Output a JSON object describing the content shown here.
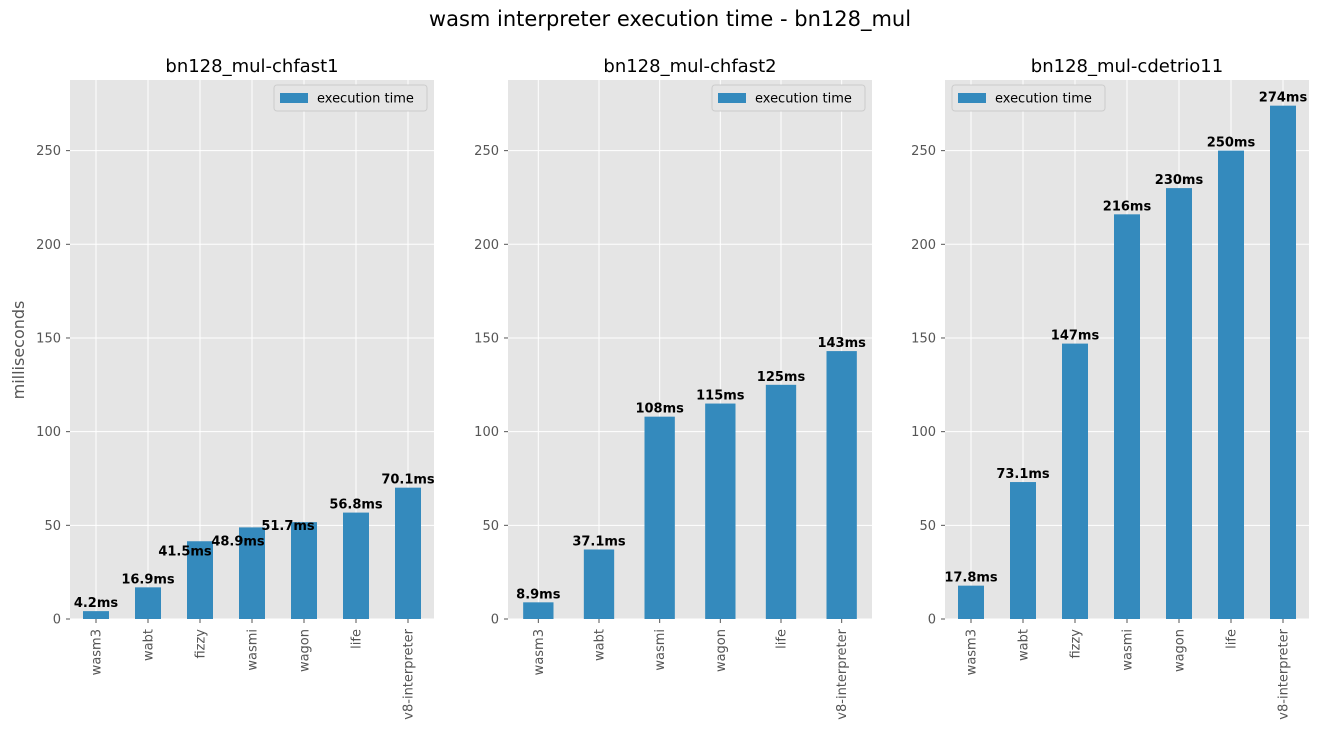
{
  "figure": {
    "title": "wasm interpreter execution time - bn128_mul",
    "ylabel": "milliseconds"
  },
  "chart_data": [
    {
      "type": "bar",
      "title": "bn128_mul-chfast1",
      "categories": [
        "wasm3",
        "wabt",
        "fizzy",
        "wasmi",
        "wagon",
        "life",
        "v8-interpreter"
      ],
      "series": [
        {
          "name": "execution time",
          "values": [
            4.2,
            16.9,
            41.5,
            48.9,
            51.7,
            56.8,
            70.1
          ]
        }
      ],
      "data_labels": [
        "4.2ms",
        "16.9ms",
        "41.5ms",
        "48.9ms",
        "51.7ms",
        "56.8ms",
        "70.1ms"
      ],
      "ylabel": "milliseconds",
      "ylim": [
        0,
        287.7
      ],
      "yticks": [
        0,
        50,
        100,
        150,
        200,
        250
      ],
      "grid": true,
      "legend": "top-right",
      "color": "#348abd"
    },
    {
      "type": "bar",
      "title": "bn128_mul-chfast2",
      "categories": [
        "wasm3",
        "wabt",
        "wasmi",
        "wagon",
        "life",
        "v8-interpreter"
      ],
      "series": [
        {
          "name": "execution time",
          "values": [
            8.9,
            37.1,
            108,
            115,
            125,
            143
          ]
        }
      ],
      "data_labels": [
        "8.9ms",
        "37.1ms",
        "108ms",
        "115ms",
        "125ms",
        "143ms"
      ],
      "ylim": [
        0,
        287.7
      ],
      "yticks": [
        0,
        50,
        100,
        150,
        200,
        250
      ],
      "grid": true,
      "legend": "top-right",
      "color": "#348abd"
    },
    {
      "type": "bar",
      "title": "bn128_mul-cdetrio11",
      "categories": [
        "wasm3",
        "wabt",
        "fizzy",
        "wasmi",
        "wagon",
        "life",
        "v8-interpreter"
      ],
      "series": [
        {
          "name": "execution time",
          "values": [
            17.8,
            73.1,
            147,
            216,
            230,
            250,
            274
          ]
        }
      ],
      "data_labels": [
        "17.8ms",
        "73.1ms",
        "147ms",
        "216ms",
        "230ms",
        "250ms",
        "274ms"
      ],
      "ylim": [
        0,
        287.7
      ],
      "yticks": [
        0,
        50,
        100,
        150,
        200,
        250
      ],
      "grid": true,
      "legend": "top-left",
      "color": "#348abd"
    }
  ]
}
